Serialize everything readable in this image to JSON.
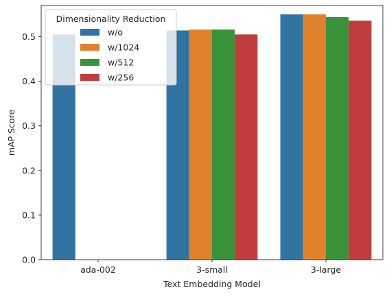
{
  "chart_data": {
    "type": "bar",
    "title": "",
    "xlabel": "Text Embedding Model",
    "ylabel": "mAP Score",
    "categories": [
      "ada-002",
      "3-small",
      "3-large"
    ],
    "ylim": [
      0,
      0.57
    ],
    "yticks": [
      0.0,
      0.1,
      0.2,
      0.3,
      0.4,
      0.5
    ],
    "ytick_labels": [
      "0.0",
      "0.1",
      "0.2",
      "0.3",
      "0.4",
      "0.5"
    ],
    "grid": false,
    "legend": {
      "title": "Dimensionality Reduction",
      "placement": "upper-left"
    },
    "series": [
      {
        "name": "w/o",
        "color": "#3274a1",
        "values": [
          0.505,
          0.514,
          0.55
        ]
      },
      {
        "name": "w/1024",
        "color": "#e1812c",
        "values": [
          null,
          0.516,
          0.55
        ]
      },
      {
        "name": "w/512",
        "color": "#3a923a",
        "values": [
          null,
          0.516,
          0.544
        ]
      },
      {
        "name": "w/256",
        "color": "#c03d3e",
        "values": [
          null,
          0.505,
          0.536
        ]
      }
    ]
  }
}
